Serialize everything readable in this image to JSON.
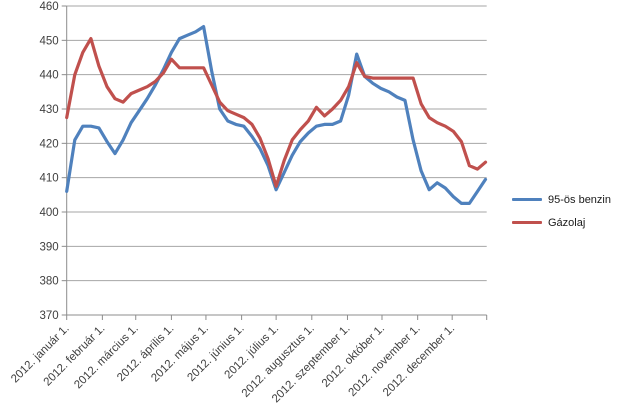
{
  "chart_data": {
    "type": "line",
    "title": "",
    "grid": true,
    "y_axis": {
      "min": 370,
      "max": 460,
      "step": 10,
      "tick_labels": [
        "370",
        "380",
        "390",
        "400",
        "410",
        "420",
        "430",
        "440",
        "450",
        "460"
      ]
    },
    "x_axis": {
      "tick_labels": [
        "2012. január 1.",
        "2012. február 1.",
        "2012. március 1.",
        "2012. április 1.",
        "2012. május 1.",
        "2012. június 1.",
        "2012. július 1.",
        "2012. augusztus 1.",
        "2012. szeptember 1.",
        "2012. október 1.",
        "2012. november 1.",
        "2012. december 1."
      ],
      "month_start_days": [
        1,
        32,
        61,
        92,
        122,
        153,
        183,
        214,
        245,
        275,
        306,
        336
      ],
      "axis_end_day": 366
    },
    "x_days": [
      1,
      8,
      15,
      22,
      29,
      36,
      43,
      50,
      57,
      64,
      71,
      78,
      85,
      92,
      99,
      106,
      113,
      120,
      127,
      134,
      141,
      148,
      155,
      162,
      169,
      176,
      183,
      190,
      197,
      204,
      211,
      218,
      225,
      232,
      239,
      246,
      253,
      260,
      267,
      274,
      281,
      288,
      295,
      302,
      309,
      316,
      323,
      330,
      337,
      344,
      351,
      358,
      365
    ],
    "series": [
      {
        "key": "benzin-95",
        "name": "95-ös benzin",
        "color": "#4F81BD",
        "values": [
          406,
          421,
          425,
          425,
          424.5,
          420.5,
          417,
          421,
          426,
          429.5,
          433,
          437,
          441.5,
          446.5,
          450.5,
          451.5,
          452.5,
          454,
          441,
          430,
          426.5,
          425.5,
          425,
          422,
          418.5,
          413.5,
          406.5,
          411.5,
          416.5,
          420.5,
          423,
          425,
          425.5,
          425.5,
          426.5,
          434,
          446,
          439.5,
          437.5,
          436,
          435,
          433.5,
          432.5,
          421,
          412,
          406.5,
          408.5,
          407,
          404.5,
          402.5,
          402.5,
          406,
          409.5
        ]
      },
      {
        "key": "gazolaj",
        "name": "Gázolaj",
        "color": "#C0504D",
        "values": [
          427.5,
          440,
          446.5,
          450.5,
          442.5,
          436.5,
          433,
          432,
          434.5,
          435.5,
          436.5,
          438,
          440.5,
          444.5,
          442,
          442,
          442,
          442,
          437,
          432,
          429.5,
          428.5,
          427.5,
          425.5,
          421.5,
          415.5,
          407.5,
          415,
          421,
          424,
          426.5,
          430.5,
          428,
          430,
          432.5,
          436.5,
          443.5,
          439.5,
          439,
          439,
          439,
          439,
          439,
          439,
          431.5,
          427.5,
          426,
          425,
          423.5,
          420.5,
          413.5,
          412.5,
          414.5
        ]
      }
    ],
    "legend": {
      "position": "right"
    },
    "colors": {
      "gridline": "#A6A6A6",
      "axis": "#8C8C8C",
      "text": "#3F3F3F",
      "background": "#FFFFFF"
    }
  }
}
